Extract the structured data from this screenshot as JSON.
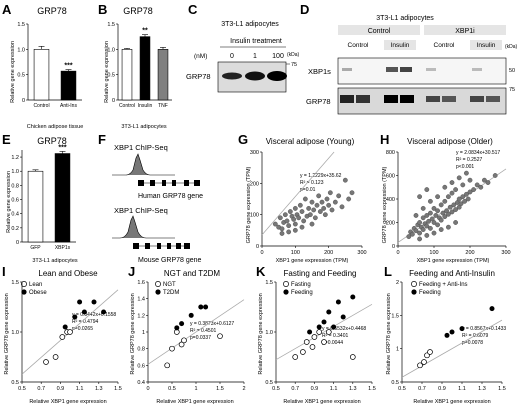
{
  "panels": {
    "A": {
      "letter": "A",
      "title": "GRP78",
      "ylabel": "Relative gene expression",
      "xlabel": "Chicken adipose tissue"
    },
    "B": {
      "letter": "B",
      "title": "GRP78",
      "ylabel": "Relative gene expression",
      "xlabel": "3T3-L1 adipocytes"
    },
    "C": {
      "letter": "C",
      "header": "3T3-L1 adipocytes",
      "subheader": "Insulin treatment",
      "conc_unit": "(nM)",
      "concs": [
        "0",
        "1",
        "100"
      ],
      "kda": "(kDa)",
      "marker": "75",
      "row_label": "GRP78"
    },
    "D": {
      "letter": "D",
      "header": "3T3-L1 adipocytes",
      "group1": "Control",
      "group2": "XBP1i",
      "sub1": "Control",
      "sub2": "Insulin",
      "sub3": "Control",
      "sub4": "Insulin",
      "kda": "(kDa)",
      "row1": "XBP1s",
      "row2": "GRP78",
      "marker1": "50",
      "marker2": "75"
    },
    "E": {
      "letter": "E",
      "title": "GRP78",
      "ylabel": "Relative gene expression",
      "xlabel": "3T3-L1 adipocytes"
    },
    "F": {
      "letter": "F",
      "track1": "XBP1 ChIP-Seq",
      "gene1": "Human GRP78 gene",
      "track2": "XBP1 ChIP-Seq",
      "gene2": "Mouse GRP78 gene"
    },
    "G": {
      "letter": "G",
      "title": "Visceral adipose (Young)",
      "eq": "y = 1.2229x+35.62",
      "r2": "R² = 0.123",
      "p": "p=0.01",
      "xlabel": "XBP1 gene expression (TPM)",
      "ylabel": "GRP78 gene expression (TPM)"
    },
    "H": {
      "letter": "H",
      "title": "Visceral adipose (Older)",
      "eq": "y = 2.0834x+30.517",
      "r2": "R² = 0.2527",
      "p": "p<0.001",
      "xlabel": "XBP1 gene expression (TPM)",
      "ylabel": "GRP78 gene expression (TPM)"
    },
    "I": {
      "letter": "I",
      "title": "Lean and Obese",
      "eq": "y = 0.8442x+0.1558",
      "r2": "R² = 0.4794",
      "p": "p=0.0265",
      "leg1": "Lean",
      "leg2": "Obese",
      "xlabel": "Relative XBP1 gene expression",
      "ylabel": "Relative GRP78 gene expression"
    },
    "J": {
      "letter": "J",
      "title": "NGT and T2DM",
      "eq": "y = 0.3873x+0.6127",
      "r2": "R² = 0.4501",
      "p": "p=0.0337",
      "leg1": "NGT",
      "leg2": "T2DM",
      "xlabel": "Relative XBP1 gene expression",
      "ylabel": "Relative GRP78 gene expression"
    },
    "K": {
      "letter": "K",
      "title": "Fasting and Feeding",
      "eq": "y = 0.5532x+0.4468",
      "r2": "R² = 0.3401",
      "p": "p=0.0044",
      "leg1": "Fasting",
      "leg2": "Feeding",
      "xlabel": "Relative XBP1 gene expression",
      "ylabel": "Relative GRP78 gene expression"
    },
    "L": {
      "letter": "L",
      "title": "Feeding and Anti-Insulin",
      "eq": "y = 0.8567x+0.1433",
      "r2": "R² = 0.6079",
      "p": "p=0.0078",
      "leg1": "Feeding + Anti-Ins",
      "leg2": "Feeding",
      "xlabel": "Relative XBP1 gene expression",
      "ylabel": "Relative GRP78 gene expression"
    }
  },
  "chart_data": [
    {
      "panel": "A",
      "type": "bar",
      "categories": [
        "Control",
        "Anti-Ins"
      ],
      "values": [
        1.0,
        0.57
      ],
      "errors": [
        0.06,
        0.03
      ],
      "colors": [
        "#ffffff",
        "#000000"
      ],
      "sig": [
        "",
        "***"
      ],
      "ylim": [
        0,
        1.5
      ],
      "yticks": [
        "0",
        "0.5",
        "1.0",
        "1.5"
      ]
    },
    {
      "panel": "B",
      "type": "bar",
      "categories": [
        "Control",
        "Insulin",
        "TNF"
      ],
      "values": [
        1.0,
        1.25,
        1.0
      ],
      "errors": [
        0.02,
        0.04,
        0.04
      ],
      "colors": [
        "#ffffff",
        "#000000",
        "#808080"
      ],
      "sig": [
        "",
        "**",
        ""
      ],
      "ylim": [
        0,
        1.5
      ],
      "yticks": [
        "0",
        "0.5",
        "1.0",
        "1.5"
      ]
    },
    {
      "panel": "E",
      "type": "bar",
      "categories": [
        "GFP",
        "XBP1s"
      ],
      "values": [
        1.0,
        1.25
      ],
      "errors": [
        0.02,
        0.03
      ],
      "colors": [
        "#ffffff",
        "#000000"
      ],
      "sig": [
        "",
        "***"
      ],
      "ylim": [
        0,
        1.3
      ],
      "yticks": [
        "0",
        "0.2",
        "0.4",
        "0.6",
        "0.8",
        "1.0",
        "1.2"
      ]
    },
    {
      "panel": "G",
      "type": "scatter",
      "xlim": [
        0,
        300
      ],
      "ylim": [
        0,
        300
      ],
      "xticks": [
        "0",
        "100",
        "200",
        "300"
      ],
      "yticks": [
        "0",
        "100",
        "200",
        "300"
      ],
      "fit": [
        1.2229,
        35.62
      ],
      "series": [
        {
          "fill": "#777777",
          "points": [
            [
              40,
              70
            ],
            [
              50,
              60
            ],
            [
              55,
              90
            ],
            [
              60,
              55
            ],
            [
              65,
              75
            ],
            [
              70,
              100
            ],
            [
              75,
              80
            ],
            [
              80,
              65
            ],
            [
              85,
              110
            ],
            [
              90,
              95
            ],
            [
              95,
              85
            ],
            [
              100,
              70
            ],
            [
              100,
              120
            ],
            [
              105,
              100
            ],
            [
              110,
              90
            ],
            [
              115,
              130
            ],
            [
              120,
              110
            ],
            [
              125,
              80
            ],
            [
              130,
              150
            ],
            [
              135,
              95
            ],
            [
              140,
              120
            ],
            [
              145,
              100
            ],
            [
              150,
              140
            ],
            [
              155,
              115
            ],
            [
              160,
              90
            ],
            [
              165,
              130
            ],
            [
              170,
              160
            ],
            [
              175,
              110
            ],
            [
              180,
              140
            ],
            [
              185,
              120
            ],
            [
              190,
              100
            ],
            [
              195,
              150
            ],
            [
              200,
              130
            ],
            [
              205,
              170
            ],
            [
              210,
              115
            ],
            [
              220,
              140
            ],
            [
              230,
              160
            ],
            [
              240,
              125
            ],
            [
              250,
              210
            ],
            [
              260,
              150
            ],
            [
              270,
              170
            ],
            [
              120,
              60
            ],
            [
              150,
              70
            ],
            [
              100,
              50
            ],
            [
              80,
              45
            ],
            [
              60,
              40
            ]
          ]
        }
      ]
    },
    {
      "panel": "H",
      "type": "scatter",
      "xlim": [
        0,
        300
      ],
      "ylim": [
        0,
        800
      ],
      "xticks": [
        "0",
        "100",
        "200",
        "300"
      ],
      "yticks": [
        "0",
        "200",
        "400",
        "600",
        "800"
      ],
      "fit": [
        2.0834,
        30.517
      ],
      "series": [
        {
          "fill": "#777777",
          "points": [
            [
              30,
              80
            ],
            [
              35,
              120
            ],
            [
              40,
              100
            ],
            [
              45,
              150
            ],
            [
              50,
              130
            ],
            [
              55,
              180
            ],
            [
              60,
              110
            ],
            [
              60,
              200
            ],
            [
              65,
              160
            ],
            [
              70,
              140
            ],
            [
              70,
              240
            ],
            [
              75,
              190
            ],
            [
              80,
              170
            ],
            [
              80,
              260
            ],
            [
              85,
              210
            ],
            [
              90,
              150
            ],
            [
              90,
              280
            ],
            [
              95,
              230
            ],
            [
              100,
              200
            ],
            [
              100,
              320
            ],
            [
              105,
              260
            ],
            [
              110,
              180
            ],
            [
              110,
              300
            ],
            [
              115,
              240
            ],
            [
              120,
              220
            ],
            [
              120,
              350
            ],
            [
              125,
              280
            ],
            [
              130,
              250
            ],
            [
              130,
              380
            ],
            [
              135,
              300
            ],
            [
              140,
              270
            ],
            [
              140,
              420
            ],
            [
              145,
              330
            ],
            [
              150,
              290
            ],
            [
              150,
              450
            ],
            [
              155,
              350
            ],
            [
              160,
              310
            ],
            [
              160,
              480
            ],
            [
              165,
              370
            ],
            [
              170,
              330
            ],
            [
              170,
              400
            ],
            [
              175,
              360
            ],
            [
              180,
              420
            ],
            [
              180,
              520
            ],
            [
              185,
              380
            ],
            [
              190,
              440
            ],
            [
              195,
              400
            ],
            [
              200,
              460
            ],
            [
              200,
              560
            ],
            [
              210,
              480
            ],
            [
              220,
              520
            ],
            [
              230,
              500
            ],
            [
              240,
              560
            ],
            [
              250,
              540
            ],
            [
              270,
              600
            ],
            [
              60,
              60
            ],
            [
              80,
              90
            ],
            [
              100,
              110
            ],
            [
              120,
              140
            ],
            [
              140,
              160
            ],
            [
              160,
              200
            ],
            [
              50,
              260
            ],
            [
              70,
              320
            ],
            [
              90,
              380
            ],
            [
              110,
              420
            ],
            [
              130,
              500
            ],
            [
              150,
              540
            ],
            [
              170,
              580
            ],
            [
              190,
              620
            ],
            [
              60,
              420
            ],
            [
              80,
              480
            ]
          ]
        }
      ]
    },
    {
      "panel": "I",
      "type": "scatter",
      "xlim": [
        0.5,
        1.5
      ],
      "ylim": [
        0.5,
        1.5
      ],
      "xticks": [
        "0.5",
        "0.7",
        "0.9",
        "1.1",
        "1.3",
        "1.5"
      ],
      "yticks": [
        "0.5",
        "1.0",
        "1.5"
      ],
      "fit": [
        0.8442,
        0.1558
      ],
      "series": [
        {
          "name": "Lean",
          "fill": "#ffffff",
          "points": [
            [
              0.75,
              0.7
            ],
            [
              0.85,
              0.75
            ],
            [
              0.92,
              0.95
            ],
            [
              0.97,
              1.0
            ],
            [
              1.0,
              1.0
            ]
          ]
        },
        {
          "name": "Obese",
          "fill": "#000000",
          "points": [
            [
              0.95,
              1.05
            ],
            [
              1.05,
              1.15
            ],
            [
              1.1,
              1.3
            ],
            [
              1.15,
              1.2
            ],
            [
              1.25,
              1.3
            ],
            [
              1.35,
              1.2
            ]
          ]
        }
      ]
    },
    {
      "panel": "J",
      "type": "scatter",
      "xlim": [
        0,
        2
      ],
      "ylim": [
        0.4,
        1.6
      ],
      "xticks": [
        "0",
        "0.5",
        "1",
        "1.5",
        "2"
      ],
      "yticks": [
        "0.4",
        "0.6",
        "0.8",
        "1",
        "1.2",
        "1.4",
        "1.6"
      ],
      "fit": [
        0.3873,
        0.6127
      ],
      "series": [
        {
          "name": "NGT",
          "fill": "#ffffff",
          "points": [
            [
              0.4,
              0.6
            ],
            [
              0.5,
              0.8
            ],
            [
              0.6,
              1.0
            ],
            [
              0.7,
              0.85
            ],
            [
              0.75,
              0.9
            ],
            [
              1.5,
              0.95
            ]
          ]
        },
        {
          "name": "T2DM",
          "fill": "#000000",
          "points": [
            [
              0.6,
              1.05
            ],
            [
              0.7,
              1.1
            ],
            [
              0.9,
              1.2
            ],
            [
              1.1,
              1.3
            ],
            [
              1.2,
              1.3
            ]
          ]
        }
      ]
    },
    {
      "panel": "K",
      "type": "scatter",
      "xlim": [
        0.5,
        1.5
      ],
      "ylim": [
        0.5,
        1.5
      ],
      "xticks": [
        "0.5",
        "0.7",
        "0.9",
        "1.1",
        "1.3",
        "1.5"
      ],
      "yticks": [
        "0.5",
        "1.0",
        "1.5"
      ],
      "fit": [
        0.5532,
        0.4468
      ],
      "series": [
        {
          "name": "Fasting",
          "fill": "#ffffff",
          "points": [
            [
              0.7,
              0.75
            ],
            [
              0.78,
              0.8
            ],
            [
              0.82,
              0.9
            ],
            [
              0.88,
              0.85
            ],
            [
              0.9,
              0.95
            ],
            [
              0.95,
              1.0
            ],
            [
              1.0,
              0.9
            ],
            [
              1.05,
              1.0
            ],
            [
              1.3,
              0.75
            ]
          ]
        },
        {
          "name": "Feeding",
          "fill": "#000000",
          "points": [
            [
              0.85,
              1.0
            ],
            [
              0.95,
              1.05
            ],
            [
              1.0,
              1.1
            ],
            [
              1.05,
              1.2
            ],
            [
              1.1,
              1.05
            ],
            [
              1.15,
              1.3
            ],
            [
              1.2,
              1.15
            ],
            [
              1.3,
              1.35
            ]
          ]
        }
      ]
    },
    {
      "panel": "L",
      "type": "scatter",
      "xlim": [
        0.5,
        1.5
      ],
      "ylim": [
        0.5,
        2
      ],
      "xticks": [
        "0.5",
        "0.7",
        "0.9",
        "1.1",
        "1.3",
        "1.5"
      ],
      "yticks": [
        "0.5",
        "1",
        "1.5",
        "2"
      ],
      "fit": [
        0.8567,
        0.1433
      ],
      "series": [
        {
          "name": "Feeding + Anti-Ins",
          "fill": "#ffffff",
          "points": [
            [
              0.68,
              0.75
            ],
            [
              0.72,
              0.8
            ],
            [
              0.75,
              0.9
            ],
            [
              0.78,
              0.95
            ]
          ]
        },
        {
          "name": "Feeding",
          "fill": "#000000",
          "points": [
            [
              0.95,
              1.2
            ],
            [
              1.0,
              1.25
            ],
            [
              1.1,
              1.3
            ],
            [
              1.4,
              1.6
            ]
          ]
        }
      ]
    }
  ]
}
